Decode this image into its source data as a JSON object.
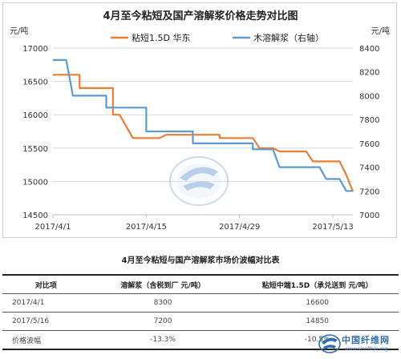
{
  "chart_data": {
    "type": "line",
    "title": "4月至今粘短及国产溶解浆价格走势对比图",
    "ylabel_left": "元/吨",
    "ylabel_right": "元/吨",
    "ylim_left": [
      14500,
      17000
    ],
    "yticks_left": [
      "17000",
      "16500",
      "16000",
      "15500",
      "15000",
      "14500"
    ],
    "ylim_right": [
      7000,
      8400
    ],
    "yticks_right": [
      "8400",
      "8200",
      "8000",
      "7800",
      "7600",
      "7400",
      "7200",
      "7000"
    ],
    "xtick_labels": [
      "2017/4/1",
      "2017/4/15",
      "2017/4/29",
      "2017/5/13"
    ],
    "x_range": [
      "2017-04-01",
      "2017-05-16"
    ],
    "series": [
      {
        "name": "粘短1.5D 华东",
        "axis": "left",
        "color": "#ed7d31",
        "points": [
          [
            "2017-04-01",
            16600
          ],
          [
            "2017-04-05",
            16600
          ],
          [
            "2017-04-05",
            16400
          ],
          [
            "2017-04-10",
            16400
          ],
          [
            "2017-04-10",
            16000
          ],
          [
            "2017-04-11",
            16000
          ],
          [
            "2017-04-13",
            15650
          ],
          [
            "2017-04-17",
            15650
          ],
          [
            "2017-04-18",
            15700
          ],
          [
            "2017-04-26",
            15700
          ],
          [
            "2017-04-26",
            15650
          ],
          [
            "2017-05-01",
            15650
          ],
          [
            "2017-05-02",
            15500
          ],
          [
            "2017-05-04",
            15500
          ],
          [
            "2017-05-05",
            15450
          ],
          [
            "2017-05-09",
            15450
          ],
          [
            "2017-05-10",
            15300
          ],
          [
            "2017-05-14",
            15300
          ],
          [
            "2017-05-15",
            15100
          ],
          [
            "2017-05-16",
            14850
          ]
        ]
      },
      {
        "name": "木溶解浆（右轴）",
        "axis": "right",
        "color": "#5b9bd5",
        "points": [
          [
            "2017-04-01",
            8300
          ],
          [
            "2017-04-03",
            8300
          ],
          [
            "2017-04-04",
            8000
          ],
          [
            "2017-04-09",
            8000
          ],
          [
            "2017-04-09",
            7900
          ],
          [
            "2017-04-15",
            7900
          ],
          [
            "2017-04-15",
            7700
          ],
          [
            "2017-04-22",
            7700
          ],
          [
            "2017-04-22",
            7600
          ],
          [
            "2017-05-01",
            7600
          ],
          [
            "2017-05-01",
            7550
          ],
          [
            "2017-05-04",
            7550
          ],
          [
            "2017-05-05",
            7400
          ],
          [
            "2017-05-11",
            7400
          ],
          [
            "2017-05-12",
            7300
          ],
          [
            "2017-05-14",
            7300
          ],
          [
            "2017-05-15",
            7200
          ],
          [
            "2017-05-16",
            7200
          ]
        ]
      }
    ],
    "legend_position": "top",
    "grid": "horizontal"
  },
  "table": {
    "title": "4月至今粘短与国产溶解浆市场价波幅对比表",
    "headers": [
      "对比项",
      "溶解浆（含税到厂 元/吨）",
      "粘短中端1.5D（承兑送到 元/吨）"
    ],
    "rows": [
      [
        "2017/4/1",
        "8300",
        "16600"
      ],
      [
        "2017/5/16",
        "7200",
        "14850"
      ],
      [
        "价格波幅",
        "-13.3%",
        "-10.5%"
      ]
    ]
  },
  "logo": {
    "name": "中国纤维网",
    "url": "www.sinofiber.org",
    "color": "#2a6fb8"
  }
}
